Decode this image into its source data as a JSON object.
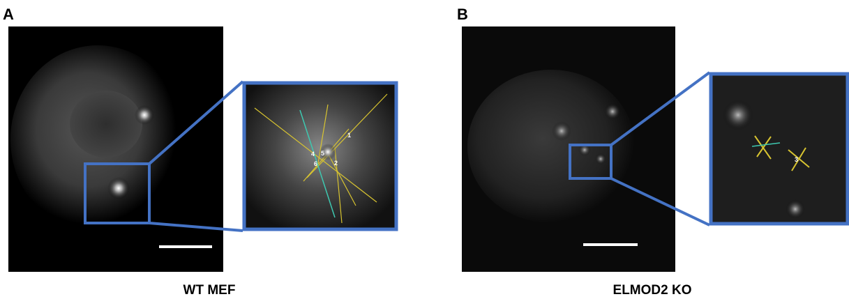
{
  "panels": [
    {
      "label": "A",
      "caption": "WT MEF",
      "annotations": [
        "1",
        "4",
        "5",
        "6",
        "2"
      ]
    },
    {
      "label": "B",
      "caption": "ELMOD2 KO",
      "annotations": [
        "3"
      ]
    }
  ]
}
